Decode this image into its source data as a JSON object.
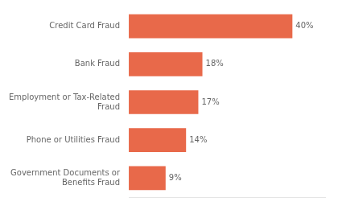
{
  "chart_data": {
    "type": "bar",
    "orientation": "horizontal",
    "categories": [
      "Government Documents or\nBenefits Fraud",
      "Phone or Utilities Fraud",
      "Employment or Tax-Related\nFraud",
      "Bank Fraud",
      "Credit Card Fraud"
    ],
    "values": [
      9,
      14,
      17,
      18,
      40
    ],
    "value_labels": [
      "9%",
      "14%",
      "17%",
      "18%",
      "40%"
    ],
    "data_labels": true,
    "color": "#E8694A",
    "xlim": [
      0,
      48
    ],
    "grid": false,
    "tick_labels": "y"
  }
}
